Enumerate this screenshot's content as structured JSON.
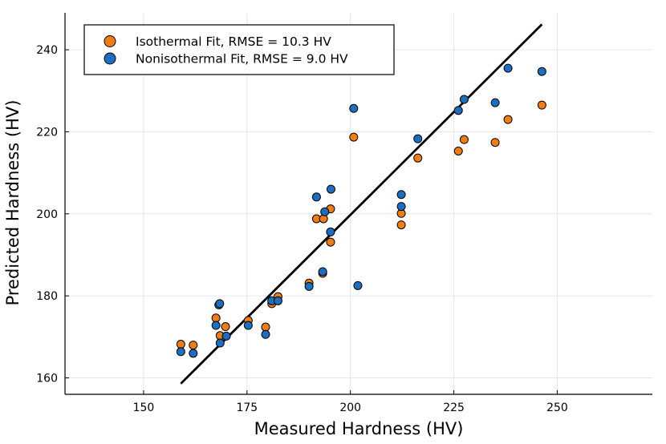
{
  "chart_data": {
    "type": "scatter",
    "title": "",
    "xlabel": "Measured Hardness (HV)",
    "ylabel": "Predicted Hardness (HV)",
    "xlim": [
      131,
      273
    ],
    "ylim": [
      156,
      249
    ],
    "xticks": [
      150,
      175,
      200,
      225,
      250
    ],
    "yticks": [
      160,
      180,
      200,
      220,
      240
    ],
    "grid": true,
    "legend_position": "top-left",
    "series": [
      {
        "name": "Isothermal Fit, RMSE = 10.3 HV",
        "color": "#f07d10",
        "points": [
          [
            159,
            168.2
          ],
          [
            162,
            168.0
          ],
          [
            167.5,
            174.6
          ],
          [
            168.5,
            170.3
          ],
          [
            169.8,
            172.5
          ],
          [
            175.3,
            174.0
          ],
          [
            179.5,
            172.4
          ],
          [
            181,
            178.1
          ],
          [
            182.5,
            179.8
          ],
          [
            190,
            183.1
          ],
          [
            191.8,
            198.8
          ],
          [
            193.3,
            185.5
          ],
          [
            193.5,
            198.8
          ],
          [
            195.2,
            201.2
          ],
          [
            195.2,
            193.1
          ],
          [
            200.8,
            218.7
          ],
          [
            212.3,
            200.1
          ],
          [
            212.3,
            197.3
          ],
          [
            216.3,
            213.6
          ],
          [
            226.1,
            215.3
          ],
          [
            227.5,
            218.1
          ],
          [
            235,
            217.4
          ],
          [
            238.1,
            223.0
          ],
          [
            246.3,
            226.5
          ]
        ]
      },
      {
        "name": "Nonisothermal Fit, RMSE = 9.0 HV",
        "color": "#1c6fc0",
        "points": [
          [
            159,
            166.4
          ],
          [
            162,
            166.0
          ],
          [
            167.5,
            172.8
          ],
          [
            168.2,
            177.8
          ],
          [
            168.4,
            178.1
          ],
          [
            168.5,
            168.5
          ],
          [
            170,
            170.2
          ],
          [
            175.3,
            172.8
          ],
          [
            179.5,
            170.6
          ],
          [
            181,
            178.8
          ],
          [
            182.5,
            178.8
          ],
          [
            190,
            182.3
          ],
          [
            191.8,
            204.1
          ],
          [
            193.3,
            185.9
          ],
          [
            193.8,
            200.5
          ],
          [
            195.2,
            195.6
          ],
          [
            195.3,
            206.0
          ],
          [
            200.8,
            225.7
          ],
          [
            201.8,
            182.5
          ],
          [
            212.3,
            204.7
          ],
          [
            212.3,
            201.8
          ],
          [
            216.3,
            218.3
          ],
          [
            226.1,
            225.2
          ],
          [
            227.5,
            227.9
          ],
          [
            235,
            227.1
          ],
          [
            238.1,
            235.5
          ],
          [
            246.3,
            234.7
          ]
        ]
      }
    ],
    "reference_line": {
      "x": [
        159,
        246.3
      ],
      "y": [
        158.6,
        246.2
      ],
      "color": "#000000"
    }
  }
}
